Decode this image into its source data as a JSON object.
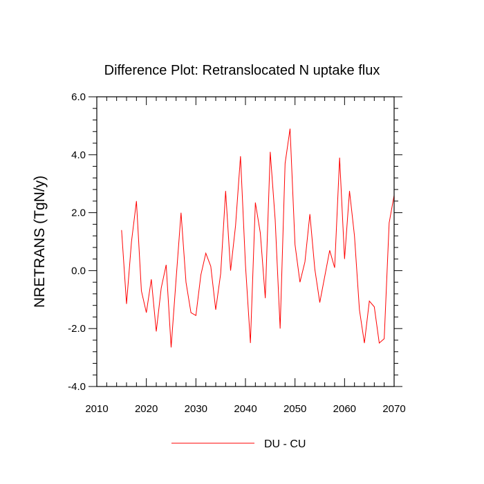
{
  "chart_data": {
    "type": "line",
    "title": "Difference Plot: Retranslocated N uptake flux",
    "xlabel": "",
    "ylabel": "NRETRANS  (TgN/y)",
    "xlim": [
      2010,
      2070
    ],
    "ylim": [
      -4.0,
      6.0
    ],
    "x_ticks": [
      2010,
      2020,
      2030,
      2040,
      2050,
      2060,
      2070
    ],
    "x_tick_labels": [
      "2010",
      "2020",
      "2030",
      "2040",
      "2050",
      "2060",
      "2070"
    ],
    "y_ticks": [
      -4.0,
      -2.0,
      0.0,
      2.0,
      4.0,
      6.0
    ],
    "y_tick_labels": [
      "-4.0",
      "-2.0",
      "0.0",
      "2.0",
      "4.0",
      "6.0"
    ],
    "grid": false,
    "legend_position": "bottom-center",
    "series": [
      {
        "name": "DU - CU",
        "color": "#ff0000",
        "x": [
          2015,
          2016,
          2017,
          2018,
          2019,
          2020,
          2021,
          2022,
          2023,
          2024,
          2025,
          2026,
          2027,
          2028,
          2029,
          2030,
          2031,
          2032,
          2033,
          2034,
          2035,
          2036,
          2037,
          2038,
          2039,
          2040,
          2041,
          2042,
          2043,
          2044,
          2045,
          2046,
          2047,
          2048,
          2049,
          2050,
          2051,
          2052,
          2053,
          2054,
          2055,
          2056,
          2057,
          2058,
          2059,
          2060,
          2061,
          2062,
          2063,
          2064,
          2065,
          2066,
          2067,
          2068,
          2069,
          2070
        ],
        "values": [
          1.4,
          -1.15,
          1.0,
          2.4,
          -0.7,
          -1.45,
          -0.3,
          -2.1,
          -0.6,
          0.2,
          -2.65,
          -0.3,
          2.0,
          -0.4,
          -1.45,
          -1.55,
          -0.15,
          0.6,
          0.15,
          -1.35,
          -0.1,
          2.75,
          0.0,
          1.55,
          3.95,
          0.2,
          -2.5,
          2.35,
          1.3,
          -0.95,
          4.1,
          1.75,
          -2.0,
          3.7,
          4.9,
          0.9,
          -0.4,
          0.3,
          1.95,
          0.05,
          -1.1,
          -0.2,
          0.7,
          0.1,
          3.9,
          0.4,
          2.75,
          1.2,
          -1.35,
          -2.5,
          -1.05,
          -1.25,
          -2.5,
          -2.35,
          1.65,
          2.6
        ]
      }
    ]
  }
}
